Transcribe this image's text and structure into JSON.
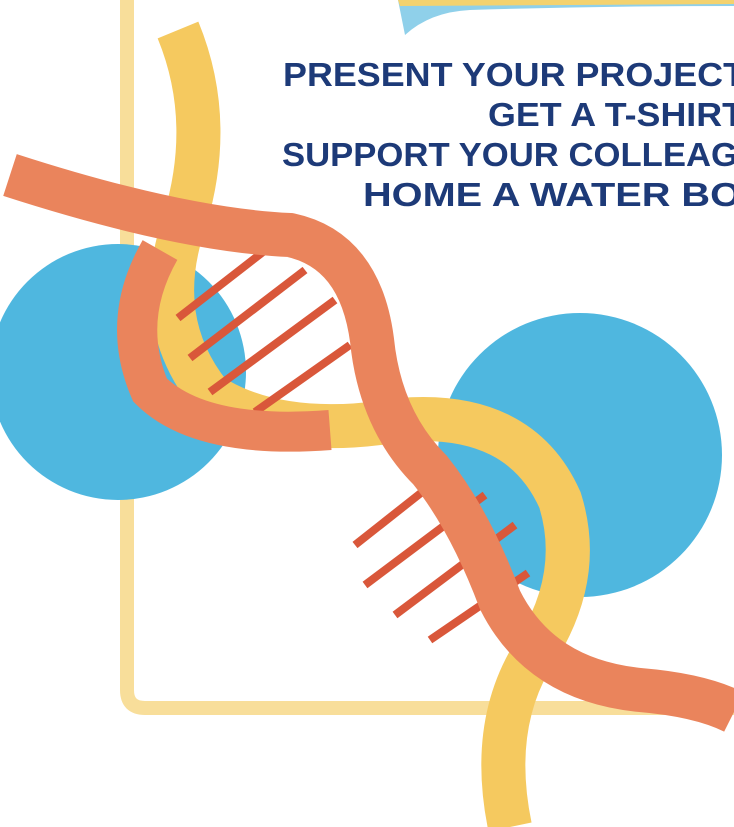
{
  "poster": {
    "lines": [
      "PRESENT YOUR PROJECT",
      "GET A T-SHIRT",
      "SUPPORT YOUR COLLEAG",
      "HOME A WATER BO"
    ]
  }
}
